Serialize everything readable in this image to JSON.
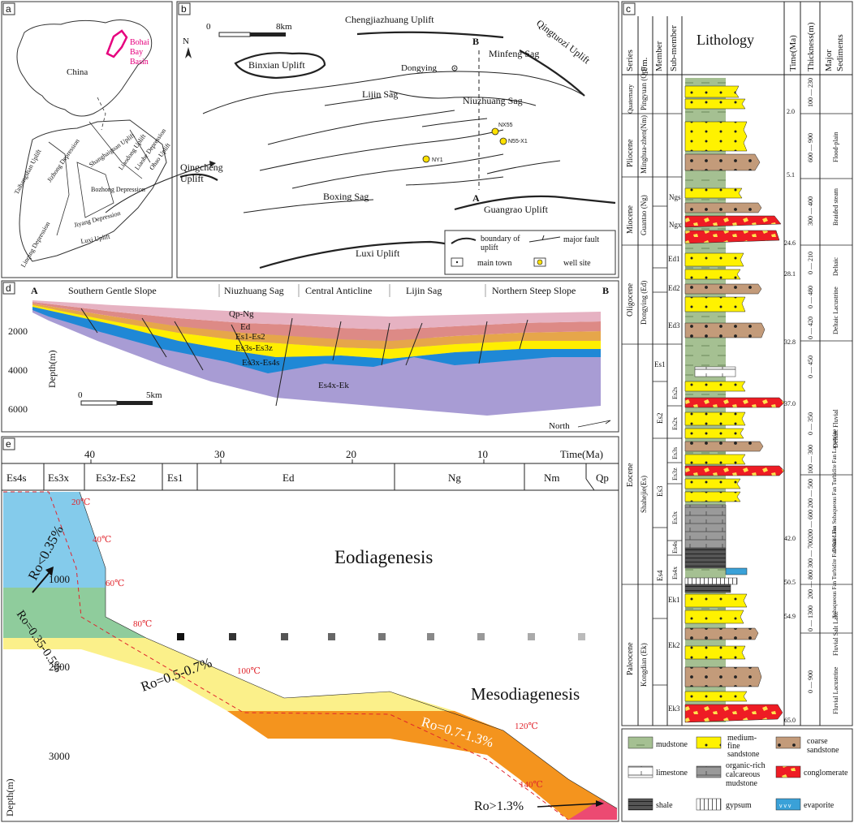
{
  "panels": {
    "a": {
      "label": "a",
      "country": "China",
      "basin": [
        "Bohai",
        "Bay",
        "Basin"
      ],
      "units": [
        "Taihangshan Uplift",
        "Jizhong Depression",
        "Linqing Depression",
        "Jiyang Depression",
        "Luxi Uplift",
        "Bozhong Depression",
        "Shanghaiguan Uplift",
        "Liaodong Uplift",
        "Liaohe Depression",
        "Ohao Uplift"
      ]
    },
    "b": {
      "label": "b",
      "scale": [
        "0",
        "8km"
      ],
      "north": "N",
      "places": [
        "Chengjiazhuang Uplift",
        "Qingtuozi Uplift",
        "Minfeng Sag",
        "Binxian Uplift",
        "Dongying",
        "Lijin Sag",
        "Niuzhuang Sag",
        "Qingcheng Uplift",
        "Boxing Sag",
        "Guangrao Uplift",
        "Luxi Uplift"
      ],
      "wells": [
        "NX55",
        "N55-X1",
        "NY1"
      ],
      "section": [
        "A",
        "B"
      ],
      "legend": {
        "boundary": "boundary of uplift",
        "fault": "major fault",
        "town": "main town",
        "well": "well site"
      }
    },
    "d": {
      "label": "d",
      "ends": [
        "A",
        "B"
      ],
      "zones": [
        "Southern Gentle Slope",
        "Niuzhuang Sag",
        "Central Anticline",
        "Lijin Sag",
        "Northern Steep Slope"
      ],
      "axis_title": "Depth(m)",
      "depths": [
        "2000",
        "4000",
        "6000"
      ],
      "layers": [
        "Qp-Ng",
        "Ed",
        "Es1-Es2",
        "Es3s-Es3z",
        "Es3x-Es4s",
        "Es4x-Ek"
      ],
      "scale": [
        "0",
        "5km"
      ],
      "north": "North"
    },
    "e": {
      "label": "e",
      "time_title": "Time(Ma)",
      "time_ticks": [
        "40",
        "30",
        "20",
        "10"
      ],
      "stages": [
        "Es4s",
        "Es3x",
        "Es3z-Es2",
        "Es1",
        "Ed",
        "Ng",
        "Nm",
        "Qp"
      ],
      "axis_title": "Depth(m)",
      "depths": [
        "1000",
        "2000",
        "3000"
      ],
      "temps": [
        "20℃",
        "40℃",
        "60℃",
        "80℃",
        "100℃",
        "120℃",
        "140℃"
      ],
      "zones": [
        "Ro<0.35%",
        "Ro=0.35-0.5%",
        "Ro=0.5-0.7%",
        "Ro=0.7-1.3%",
        "Ro>1.3%"
      ],
      "stage_labels": [
        "Eodiagenesis",
        "Mesodiagenesis"
      ],
      "colors": {
        "blue": "#84cbeb",
        "green": "#8fcc9c",
        "yellow": "#fbf08a",
        "orange": "#f4941e",
        "pink": "#ec4a72"
      }
    },
    "c": {
      "label": "c",
      "headers": [
        "Series",
        "Fm.",
        "Member",
        "Sub-member",
        "Lithology",
        "Time(Ma)",
        "Thickness(m)",
        "Major Sediments"
      ],
      "series": [
        "Quaternary",
        "Pliocene",
        "Miocene",
        "Oligocene",
        "Eocene",
        "Paleocene"
      ],
      "formations": [
        "Pingyuan (Qp)",
        "Minghua-zhen(Nm)",
        "Guantao (Ng)",
        "Dongying (Ed)",
        "Shahejie(Es)",
        "Kongdian (Ek)"
      ],
      "members": [
        "Ngs",
        "Ngx",
        "Ed1",
        "Ed2",
        "Ed3",
        "Es1",
        "Es2",
        "Es3",
        "Es4",
        "Ek1",
        "Ek2",
        "Ek3"
      ],
      "submembers": [
        "Es2s",
        "Es2x",
        "Es3s",
        "Es3z",
        "Es3x",
        "Es4s",
        "Es4x"
      ],
      "times": [
        "2.0",
        "5.1",
        "24.6",
        "28.1",
        "32.8",
        "37.0",
        "42.0",
        "50.5",
        "54.9",
        "65.0"
      ],
      "thickness": [
        "100 — 230",
        "600 — 900",
        "300 — 400",
        "0 — 210",
        "0 — 480",
        "0 — 420",
        "0 — 450",
        "0 — 350",
        "100 — 300",
        "200 — 500",
        "200 — 600",
        "300 — 700",
        "200 — 800",
        "0 — 1300",
        "0 — 900"
      ],
      "sediments": [
        "Flood-plain",
        "Braided steam",
        "Deltaic",
        "Deltaic Lacustrine",
        "Deltaic Fluvial",
        "Deltaic Fan Subaqueous Fan Turbidite Fan Lacustrine",
        "Subaqueous Fan Turbidite Fan Salt Lake",
        "Fluvial Salt Lake",
        "Fluvial Lacustrine"
      ]
    },
    "legend": {
      "items": [
        "mudstone",
        "medium-fine sandstone",
        "coarse sandstone",
        "limestone",
        "organic-rich calcareous mudstone",
        "conglomerate",
        "shale",
        "gypsum",
        "evaporite"
      ]
    }
  }
}
